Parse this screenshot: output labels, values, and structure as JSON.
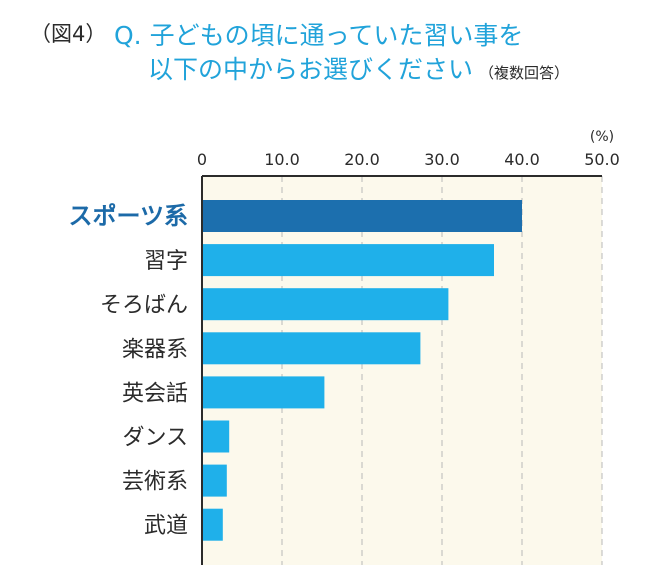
{
  "header": {
    "figure_label": "（図4）",
    "question_line1": "Q. 子どもの頃に通っていた習い事を",
    "question_line2": "以下の中からお選びください",
    "note": "（複数回答）"
  },
  "colors": {
    "highlight": "#1c6fae",
    "bar": "#1fb0ea",
    "plot_bg": "#fcf9ec",
    "highlight_text": "#1c6aa8"
  },
  "chart_data": {
    "type": "bar",
    "orientation": "horizontal",
    "unit": "(%)",
    "categories": [
      "スポーツ系",
      "習字",
      "そろばん",
      "楽器系",
      "英会話",
      "ダンス",
      "芸術系",
      "武道"
    ],
    "values": [
      40.0,
      36.5,
      30.8,
      27.3,
      15.3,
      3.4,
      3.1,
      2.6
    ],
    "highlight_index": 0,
    "xlim": [
      0,
      50
    ],
    "xticks": [
      "0",
      "10.0",
      "20.0",
      "30.0",
      "40.0",
      "50.0"
    ],
    "grid": true
  }
}
